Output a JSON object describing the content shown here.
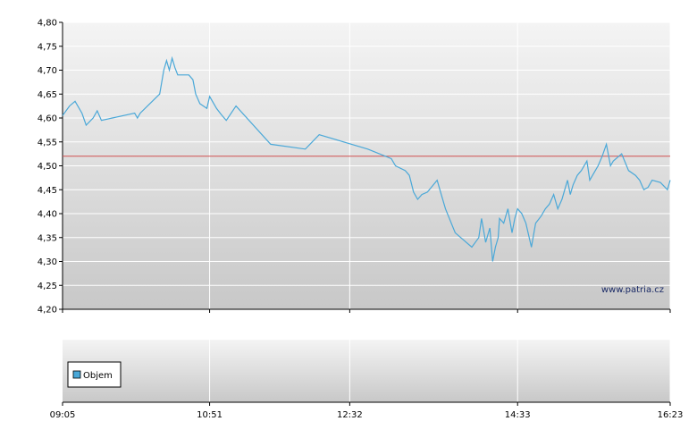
{
  "watermark": "www.patria.cz",
  "chart_data": [
    {
      "type": "line",
      "title": "",
      "xlabel": "",
      "ylabel": "",
      "ylim": [
        4.2,
        4.8
      ],
      "yticks": [
        "4,80",
        "4,75",
        "4,70",
        "4,65",
        "4,60",
        "4,55",
        "4,50",
        "4,45",
        "4,40",
        "4,35",
        "4,30",
        "4,25",
        "4,20"
      ],
      "xlim": [
        "09:05",
        "16:23"
      ],
      "xticks": [
        "09:05",
        "10:51",
        "12:32",
        "14:33",
        "16:23"
      ],
      "grid": true,
      "line_color": "#4aa8d8",
      "reference_line": {
        "value": 4.52,
        "color": "#d05050"
      },
      "series": [
        {
          "x": [
            "09:05",
            "09:10",
            "09:14",
            "09:19",
            "09:22",
            "09:27",
            "09:30",
            "09:33",
            "09:57",
            "09:59",
            "10:01",
            "10:15",
            "10:18",
            "10:20",
            "10:22",
            "10:24",
            "10:26",
            "10:28",
            "10:36",
            "10:39",
            "10:41",
            "10:44",
            "10:49",
            "10:51",
            "10:56",
            "11:00",
            "11:03",
            "11:10",
            "11:35",
            "12:00",
            "12:10",
            "12:45",
            "13:02",
            "13:05",
            "13:12",
            "13:15",
            "13:18",
            "13:21",
            "13:24",
            "13:28",
            "13:35",
            "13:38",
            "13:41",
            "13:48",
            "14:00",
            "14:05",
            "14:07",
            "14:10",
            "14:13",
            "14:15",
            "14:17",
            "14:19",
            "14:20",
            "14:23",
            "14:26",
            "14:29",
            "14:31",
            "14:33",
            "14:36",
            "14:39",
            "14:43",
            "14:46",
            "14:50",
            "14:53",
            "14:56",
            "14:59",
            "15:02",
            "15:05",
            "15:07",
            "15:09",
            "15:11",
            "15:13",
            "15:16",
            "15:19",
            "15:23",
            "15:25",
            "15:27",
            "15:29",
            "15:31",
            "15:34",
            "15:37",
            "15:40",
            "15:42",
            "15:48",
            "15:53",
            "15:58",
            "16:01",
            "16:04",
            "16:07",
            "16:10",
            "16:16",
            "16:21",
            "16:23"
          ],
          "y": [
            4.605,
            4.625,
            4.635,
            4.61,
            4.585,
            4.6,
            4.615,
            4.595,
            4.61,
            4.6,
            4.61,
            4.65,
            4.7,
            4.72,
            4.7,
            4.725,
            4.705,
            4.69,
            4.69,
            4.68,
            4.65,
            4.63,
            4.62,
            4.645,
            4.62,
            4.605,
            4.595,
            4.625,
            4.545,
            4.535,
            4.565,
            4.535,
            4.515,
            4.5,
            4.49,
            4.48,
            4.445,
            4.43,
            4.44,
            4.445,
            4.47,
            4.44,
            4.41,
            4.36,
            4.33,
            4.35,
            4.39,
            4.34,
            4.37,
            4.3,
            4.33,
            4.35,
            4.39,
            4.38,
            4.41,
            4.36,
            4.39,
            4.41,
            4.4,
            4.38,
            4.33,
            4.38,
            4.395,
            4.41,
            4.42,
            4.44,
            4.41,
            4.43,
            4.45,
            4.47,
            4.44,
            4.46,
            4.48,
            4.49,
            4.51,
            4.47,
            4.48,
            4.49,
            4.5,
            4.52,
            4.545,
            4.5,
            4.51,
            4.525,
            4.49,
            4.48,
            4.47,
            4.45,
            4.455,
            4.47,
            4.465,
            4.45,
            4.47
          ]
        }
      ]
    },
    {
      "type": "bar",
      "title": "",
      "xlabel": "",
      "ylabel": "",
      "xticks": [
        "09:05",
        "10:51",
        "12:32",
        "14:33",
        "16:23"
      ],
      "legend": {
        "position": "bottom-left",
        "entries": [
          {
            "name": "Objem",
            "color": "#4aa8d8"
          }
        ]
      },
      "series": [
        {
          "name": "Objem",
          "values": []
        }
      ]
    }
  ]
}
